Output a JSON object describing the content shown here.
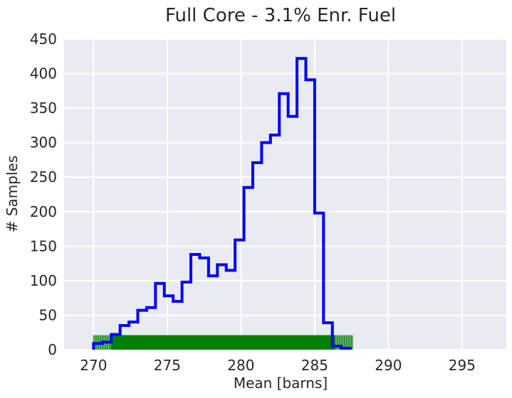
{
  "chart_data": {
    "type": "histogram",
    "title": "Full Core - 3.1% Enr. Fuel",
    "xlabel": "Mean [barns]",
    "ylabel": "# Samples",
    "xlim": [
      268,
      298
    ],
    "ylim": [
      0,
      450
    ],
    "xticks": [
      "270",
      "275",
      "280",
      "285",
      "290",
      "295"
    ],
    "yticks": [
      "0",
      "50",
      "100",
      "150",
      "200",
      "250",
      "300",
      "350",
      "400",
      "450"
    ],
    "grid": true,
    "background": "#EAEAF2",
    "series_color": "#0000FF",
    "rug_color": "#008000",
    "bin_edges": [
      270.0,
      270.6,
      271.2,
      271.8,
      272.4,
      273.0,
      273.6,
      274.2,
      274.8,
      275.4,
      276.0,
      276.6,
      277.2,
      277.8,
      278.4,
      279.0,
      279.6,
      280.2,
      280.8,
      281.4,
      282.0,
      282.6,
      283.2,
      283.8,
      284.4,
      285.0,
      285.6,
      286.2,
      286.8,
      287.4
    ],
    "counts": [
      9,
      11,
      22,
      35,
      40,
      57,
      61,
      96,
      78,
      70,
      98,
      138,
      133,
      107,
      123,
      115,
      159,
      235,
      271,
      300,
      311,
      371,
      338,
      422,
      391,
      198,
      39,
      5,
      2
    ],
    "rug_range": [
      270.0,
      287.6
    ],
    "rug_height": 21
  }
}
